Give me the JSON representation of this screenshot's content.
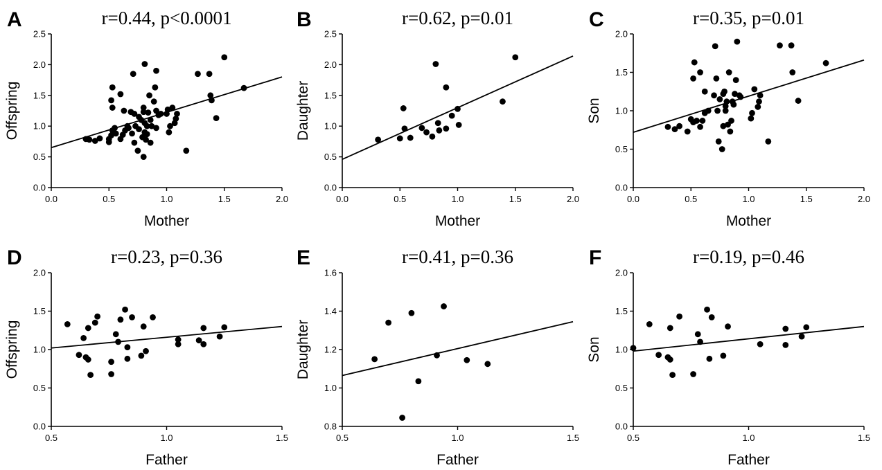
{
  "chart_data": [
    {
      "panel": "A",
      "type": "scatter",
      "title": "r=0.44, p<0.0001",
      "xlabel": "Mother",
      "ylabel": "Offspring",
      "xlim": [
        0,
        2
      ],
      "ylim": [
        0,
        2.5
      ],
      "xticks": [
        "0.0",
        "0.5",
        "1.0",
        "1.5",
        "2.0"
      ],
      "yticks": [
        "0.0",
        "0.5",
        "1.0",
        "1.5",
        "2.0",
        "2.5"
      ],
      "fit_line": {
        "x": [
          0,
          2
        ],
        "y": [
          0.65,
          1.8
        ]
      },
      "points": [
        [
          0.3,
          0.79
        ],
        [
          0.33,
          0.78
        ],
        [
          0.38,
          0.76
        ],
        [
          0.42,
          0.8
        ],
        [
          0.5,
          0.74
        ],
        [
          0.5,
          0.79
        ],
        [
          0.52,
          0.85
        ],
        [
          0.53,
          0.93
        ],
        [
          0.55,
          0.97
        ],
        [
          0.56,
          0.88
        ],
        [
          0.52,
          1.42
        ],
        [
          0.53,
          1.3
        ],
        [
          0.53,
          1.63
        ],
        [
          0.6,
          1.52
        ],
        [
          0.6,
          0.79
        ],
        [
          0.62,
          0.86
        ],
        [
          0.63,
          1.25
        ],
        [
          0.64,
          0.93
        ],
        [
          0.66,
          1.0
        ],
        [
          0.67,
          0.97
        ],
        [
          0.69,
          1.23
        ],
        [
          0.7,
          0.88
        ],
        [
          0.71,
          1.85
        ],
        [
          0.72,
          1.2
        ],
        [
          0.72,
          0.73
        ],
        [
          0.73,
          1.0
        ],
        [
          0.75,
          0.6
        ],
        [
          0.76,
          1.15
        ],
        [
          0.76,
          0.95
        ],
        [
          0.78,
          1.1
        ],
        [
          0.79,
          0.82
        ],
        [
          0.8,
          1.23
        ],
        [
          0.8,
          1.3
        ],
        [
          0.81,
          0.9
        ],
        [
          0.81,
          1.05
        ],
        [
          0.8,
          0.5
        ],
        [
          0.81,
          2.01
        ],
        [
          0.82,
          0.78
        ],
        [
          0.83,
          0.87
        ],
        [
          0.83,
          1.0
        ],
        [
          0.84,
          1.22
        ],
        [
          0.85,
          1.5
        ],
        [
          0.86,
          0.73
        ],
        [
          0.86,
          1.1
        ],
        [
          0.87,
          1.0
        ],
        [
          0.89,
          1.4
        ],
        [
          0.9,
          1.63
        ],
        [
          0.91,
          1.25
        ],
        [
          0.91,
          1.9
        ],
        [
          0.91,
          0.97
        ],
        [
          0.93,
          1.18
        ],
        [
          0.95,
          1.2
        ],
        [
          1.0,
          1.2
        ],
        [
          1.01,
          1.27
        ],
        [
          1.02,
          0.9
        ],
        [
          1.03,
          1.0
        ],
        [
          1.05,
          1.3
        ],
        [
          1.07,
          1.05
        ],
        [
          1.08,
          1.12
        ],
        [
          1.09,
          1.2
        ],
        [
          1.17,
          0.6
        ],
        [
          1.27,
          1.85
        ],
        [
          1.37,
          1.85
        ],
        [
          1.38,
          1.5
        ],
        [
          1.39,
          1.42
        ],
        [
          1.43,
          1.13
        ],
        [
          1.5,
          2.12
        ],
        [
          1.67,
          1.62
        ]
      ]
    },
    {
      "panel": "B",
      "type": "scatter",
      "title": "r=0.62, p=0.01",
      "xlabel": "Mother",
      "ylabel": "Daughter",
      "xlim": [
        0,
        2
      ],
      "ylim": [
        0,
        2.5
      ],
      "xticks": [
        "0.0",
        "0.5",
        "1.0",
        "1.5",
        "2.0"
      ],
      "yticks": [
        "0.0",
        "0.5",
        "1.0",
        "1.5",
        "2.0",
        "2.5"
      ],
      "fit_line": {
        "x": [
          0,
          2
        ],
        "y": [
          0.46,
          2.14
        ]
      },
      "points": [
        [
          0.31,
          0.78
        ],
        [
          0.5,
          0.8
        ],
        [
          0.53,
          1.29
        ],
        [
          0.54,
          0.96
        ],
        [
          0.59,
          0.81
        ],
        [
          0.69,
          0.97
        ],
        [
          0.73,
          0.9
        ],
        [
          0.78,
          0.83
        ],
        [
          0.81,
          2.01
        ],
        [
          0.83,
          1.05
        ],
        [
          0.84,
          0.93
        ],
        [
          0.9,
          0.96
        ],
        [
          0.9,
          1.63
        ],
        [
          0.95,
          1.17
        ],
        [
          1.0,
          1.28
        ],
        [
          1.01,
          1.02
        ],
        [
          1.39,
          1.4
        ],
        [
          1.5,
          2.12
        ]
      ]
    },
    {
      "panel": "C",
      "type": "scatter",
      "title": "r=0.35, p=0.01",
      "xlabel": "Mother",
      "ylabel": "Son",
      "xlim": [
        0,
        2
      ],
      "ylim": [
        0,
        2.0
      ],
      "xticks": [
        "0.0",
        "0.5",
        "1.0",
        "1.5",
        "2.0"
      ],
      "yticks": [
        "0.0",
        "0.5",
        "1.0",
        "1.5",
        "2.0"
      ],
      "fit_line": {
        "x": [
          0,
          2
        ],
        "y": [
          0.72,
          1.66
        ]
      },
      "points": [
        [
          0.3,
          0.79
        ],
        [
          0.36,
          0.76
        ],
        [
          0.4,
          0.8
        ],
        [
          0.47,
          0.73
        ],
        [
          0.5,
          0.89
        ],
        [
          0.52,
          1.42
        ],
        [
          0.53,
          1.63
        ],
        [
          0.52,
          0.85
        ],
        [
          0.55,
          0.87
        ],
        [
          0.58,
          1.5
        ],
        [
          0.58,
          0.79
        ],
        [
          0.6,
          0.87
        ],
        [
          0.62,
          0.97
        ],
        [
          0.62,
          1.25
        ],
        [
          0.65,
          1.0
        ],
        [
          0.7,
          1.2
        ],
        [
          0.71,
          1.84
        ],
        [
          0.72,
          1.42
        ],
        [
          0.73,
          1.0
        ],
        [
          0.74,
          0.6
        ],
        [
          0.75,
          1.15
        ],
        [
          0.77,
          0.5
        ],
        [
          0.78,
          0.8
        ],
        [
          0.78,
          1.22
        ],
        [
          0.79,
          1.25
        ],
        [
          0.8,
          1.06
        ],
        [
          0.8,
          1.0
        ],
        [
          0.81,
          1.12
        ],
        [
          0.82,
          0.82
        ],
        [
          0.83,
          1.5
        ],
        [
          0.84,
          0.73
        ],
        [
          0.85,
          0.87
        ],
        [
          0.86,
          1.12
        ],
        [
          0.87,
          1.08
        ],
        [
          0.88,
          1.22
        ],
        [
          0.89,
          1.4
        ],
        [
          0.9,
          1.9
        ],
        [
          0.92,
          1.2
        ],
        [
          0.93,
          1.18
        ],
        [
          1.02,
          0.9
        ],
        [
          1.03,
          0.97
        ],
        [
          1.05,
          1.28
        ],
        [
          1.08,
          1.05
        ],
        [
          1.09,
          1.12
        ],
        [
          1.1,
          1.2
        ],
        [
          1.17,
          0.6
        ],
        [
          1.27,
          1.85
        ],
        [
          1.37,
          1.85
        ],
        [
          1.38,
          1.5
        ],
        [
          1.43,
          1.13
        ],
        [
          1.67,
          1.62
        ]
      ]
    },
    {
      "panel": "D",
      "type": "scatter",
      "title": "r=0.23, p=0.36",
      "xlabel": "Father",
      "ylabel": "Offspring",
      "xlim": [
        0.5,
        1.5
      ],
      "ylim": [
        0,
        2.0
      ],
      "xticks": [
        "0.5",
        "1.0",
        "1.5"
      ],
      "yticks": [
        "0.0",
        "0.5",
        "1.0",
        "1.5",
        "2.0"
      ],
      "fit_line": {
        "x": [
          0.5,
          1.5
        ],
        "y": [
          1.02,
          1.3
        ]
      },
      "points": [
        [
          0.57,
          1.33
        ],
        [
          0.62,
          0.93
        ],
        [
          0.64,
          1.15
        ],
        [
          0.65,
          0.9
        ],
        [
          0.66,
          0.87
        ],
        [
          0.66,
          1.28
        ],
        [
          0.67,
          0.67
        ],
        [
          0.69,
          1.35
        ],
        [
          0.7,
          1.43
        ],
        [
          0.76,
          0.84
        ],
        [
          0.76,
          0.68
        ],
        [
          0.78,
          1.2
        ],
        [
          0.79,
          1.1
        ],
        [
          0.8,
          1.39
        ],
        [
          0.82,
          1.52
        ],
        [
          0.83,
          1.03
        ],
        [
          0.83,
          0.88
        ],
        [
          0.85,
          1.42
        ],
        [
          0.89,
          0.92
        ],
        [
          0.9,
          1.3
        ],
        [
          0.91,
          0.98
        ],
        [
          0.94,
          1.42
        ],
        [
          1.05,
          1.13
        ],
        [
          1.05,
          1.07
        ],
        [
          1.14,
          1.12
        ],
        [
          1.16,
          1.28
        ],
        [
          1.16,
          1.07
        ],
        [
          1.23,
          1.17
        ],
        [
          1.25,
          1.29
        ]
      ]
    },
    {
      "panel": "E",
      "type": "scatter",
      "title": "r=0.41, p=0.36",
      "xlabel": "Father",
      "ylabel": "Daughter",
      "xlim": [
        0.5,
        1.5
      ],
      "ylim": [
        0.8,
        1.6
      ],
      "xticks": [
        "0.5",
        "1.0",
        "1.5"
      ],
      "yticks": [
        "0.8",
        "1.0",
        "1.2",
        "1.4",
        "1.6"
      ],
      "fit_line": {
        "x": [
          0.5,
          1.5
        ],
        "y": [
          1.065,
          1.345
        ]
      },
      "points": [
        [
          0.64,
          1.15
        ],
        [
          0.7,
          1.34
        ],
        [
          0.76,
          0.845
        ],
        [
          0.8,
          1.39
        ],
        [
          0.83,
          1.035
        ],
        [
          0.91,
          1.17
        ],
        [
          0.94,
          1.425
        ],
        [
          1.04,
          1.145
        ],
        [
          1.13,
          1.125
        ]
      ]
    },
    {
      "panel": "F",
      "type": "scatter",
      "title": "r=0.19, p=0.46",
      "xlabel": "Father",
      "ylabel": "Son",
      "xlim": [
        0.5,
        1.5
      ],
      "ylim": [
        0,
        2.0
      ],
      "xticks": [
        "0.5",
        "1.0",
        "1.5"
      ],
      "yticks": [
        "0.0",
        "0.5",
        "1.0",
        "1.5",
        "2.0"
      ],
      "fit_line": {
        "x": [
          0.5,
          1.5
        ],
        "y": [
          0.98,
          1.3
        ]
      },
      "points": [
        [
          0.5,
          1.02
        ],
        [
          0.57,
          1.33
        ],
        [
          0.61,
          0.93
        ],
        [
          0.65,
          0.9
        ],
        [
          0.66,
          0.87
        ],
        [
          0.66,
          1.28
        ],
        [
          0.67,
          0.67
        ],
        [
          0.7,
          1.43
        ],
        [
          0.76,
          0.68
        ],
        [
          0.78,
          1.2
        ],
        [
          0.79,
          1.1
        ],
        [
          0.82,
          1.52
        ],
        [
          0.83,
          0.88
        ],
        [
          0.84,
          1.42
        ],
        [
          0.89,
          0.92
        ],
        [
          0.91,
          1.3
        ],
        [
          1.05,
          1.07
        ],
        [
          1.16,
          1.06
        ],
        [
          1.16,
          1.27
        ],
        [
          1.23,
          1.17
        ],
        [
          1.25,
          1.29
        ]
      ]
    }
  ]
}
